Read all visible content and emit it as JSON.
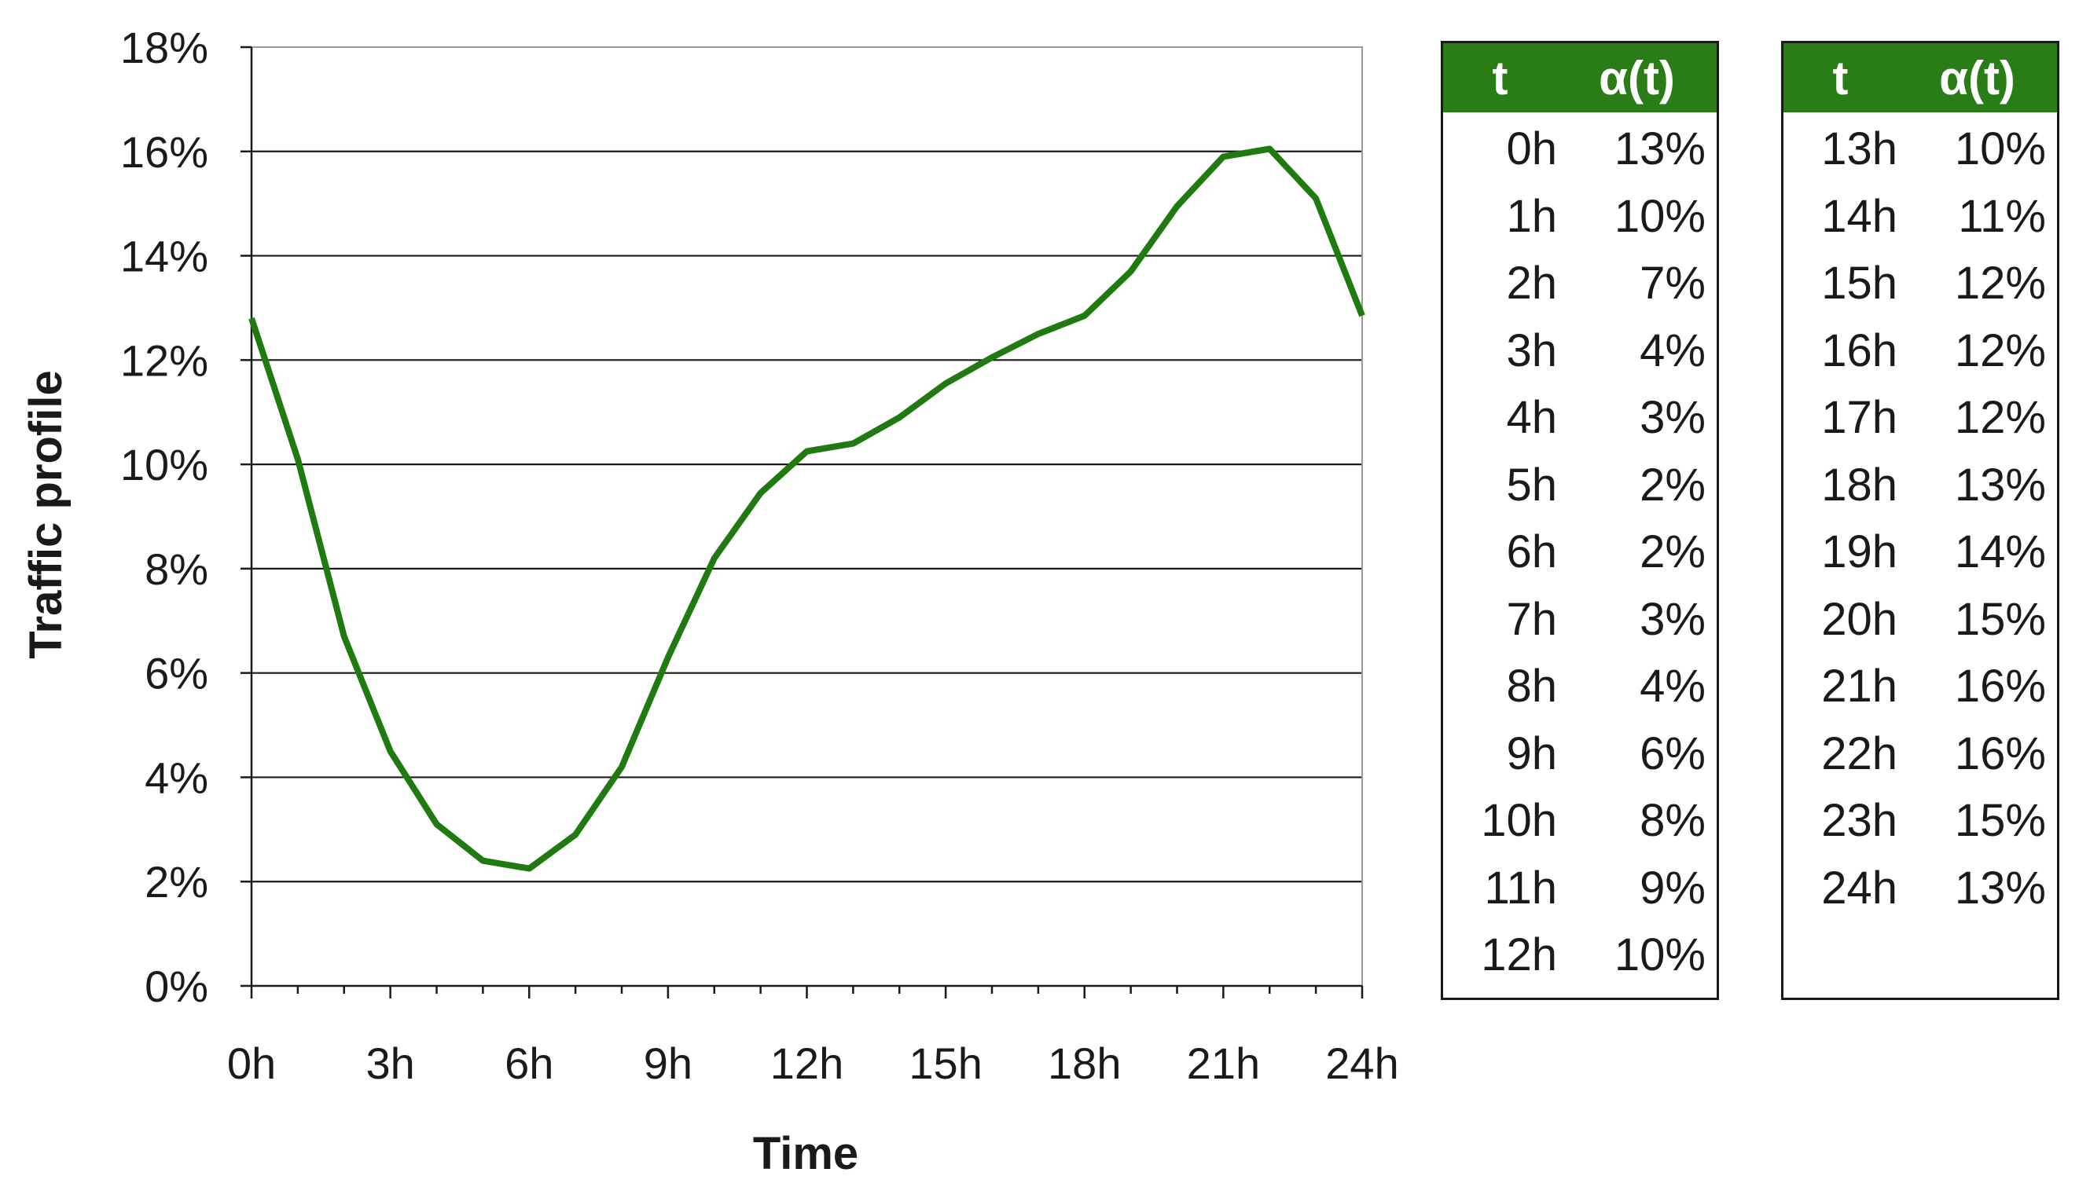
{
  "chart_data": {
    "type": "line",
    "xlabel": "Time",
    "ylabel": "Traffic profile",
    "xlim": [
      0,
      24
    ],
    "ylim": [
      0,
      18
    ],
    "x_ticks": [
      "0h",
      "3h",
      "6h",
      "9h",
      "12h",
      "15h",
      "18h",
      "21h",
      "24h"
    ],
    "y_ticks": [
      "0%",
      "2%",
      "4%",
      "6%",
      "8%",
      "10%",
      "12%",
      "14%",
      "16%",
      "18%"
    ],
    "grid": "horizontal",
    "color": "#1f7a0f",
    "series": [
      {
        "x": [
          0,
          1,
          2,
          3,
          4,
          5,
          6,
          7,
          8,
          9,
          10,
          11,
          12,
          13,
          14,
          15,
          16,
          17,
          18,
          19,
          20,
          21,
          22,
          23,
          24
        ],
        "y": [
          12.8,
          10.1,
          6.7,
          4.5,
          3.1,
          2.4,
          2.25,
          2.9,
          4.2,
          6.3,
          8.2,
          9.45,
          10.25,
          10.4,
          10.9,
          11.55,
          12.05,
          12.5,
          12.85,
          13.7,
          14.95,
          15.9,
          16.05,
          15.1,
          12.85
        ]
      }
    ]
  },
  "table": {
    "header_t": "t",
    "header_alpha": "α(t)",
    "left": [
      {
        "t": "0h",
        "a": "13%"
      },
      {
        "t": "1h",
        "a": "10%"
      },
      {
        "t": "2h",
        "a": "7%"
      },
      {
        "t": "3h",
        "a": "4%"
      },
      {
        "t": "4h",
        "a": "3%"
      },
      {
        "t": "5h",
        "a": "2%"
      },
      {
        "t": "6h",
        "a": "2%"
      },
      {
        "t": "7h",
        "a": "3%"
      },
      {
        "t": "8h",
        "a": "4%"
      },
      {
        "t": "9h",
        "a": "6%"
      },
      {
        "t": "10h",
        "a": "8%"
      },
      {
        "t": "11h",
        "a": "9%"
      },
      {
        "t": "12h",
        "a": "10%"
      }
    ],
    "right": [
      {
        "t": "13h",
        "a": "10%"
      },
      {
        "t": "14h",
        "a": "11%"
      },
      {
        "t": "15h",
        "a": "12%"
      },
      {
        "t": "16h",
        "a": "12%"
      },
      {
        "t": "17h",
        "a": "12%"
      },
      {
        "t": "18h",
        "a": "13%"
      },
      {
        "t": "19h",
        "a": "14%"
      },
      {
        "t": "20h",
        "a": "15%"
      },
      {
        "t": "21h",
        "a": "16%"
      },
      {
        "t": "22h",
        "a": "16%"
      },
      {
        "t": "23h",
        "a": "15%"
      },
      {
        "t": "24h",
        "a": "13%"
      }
    ]
  }
}
